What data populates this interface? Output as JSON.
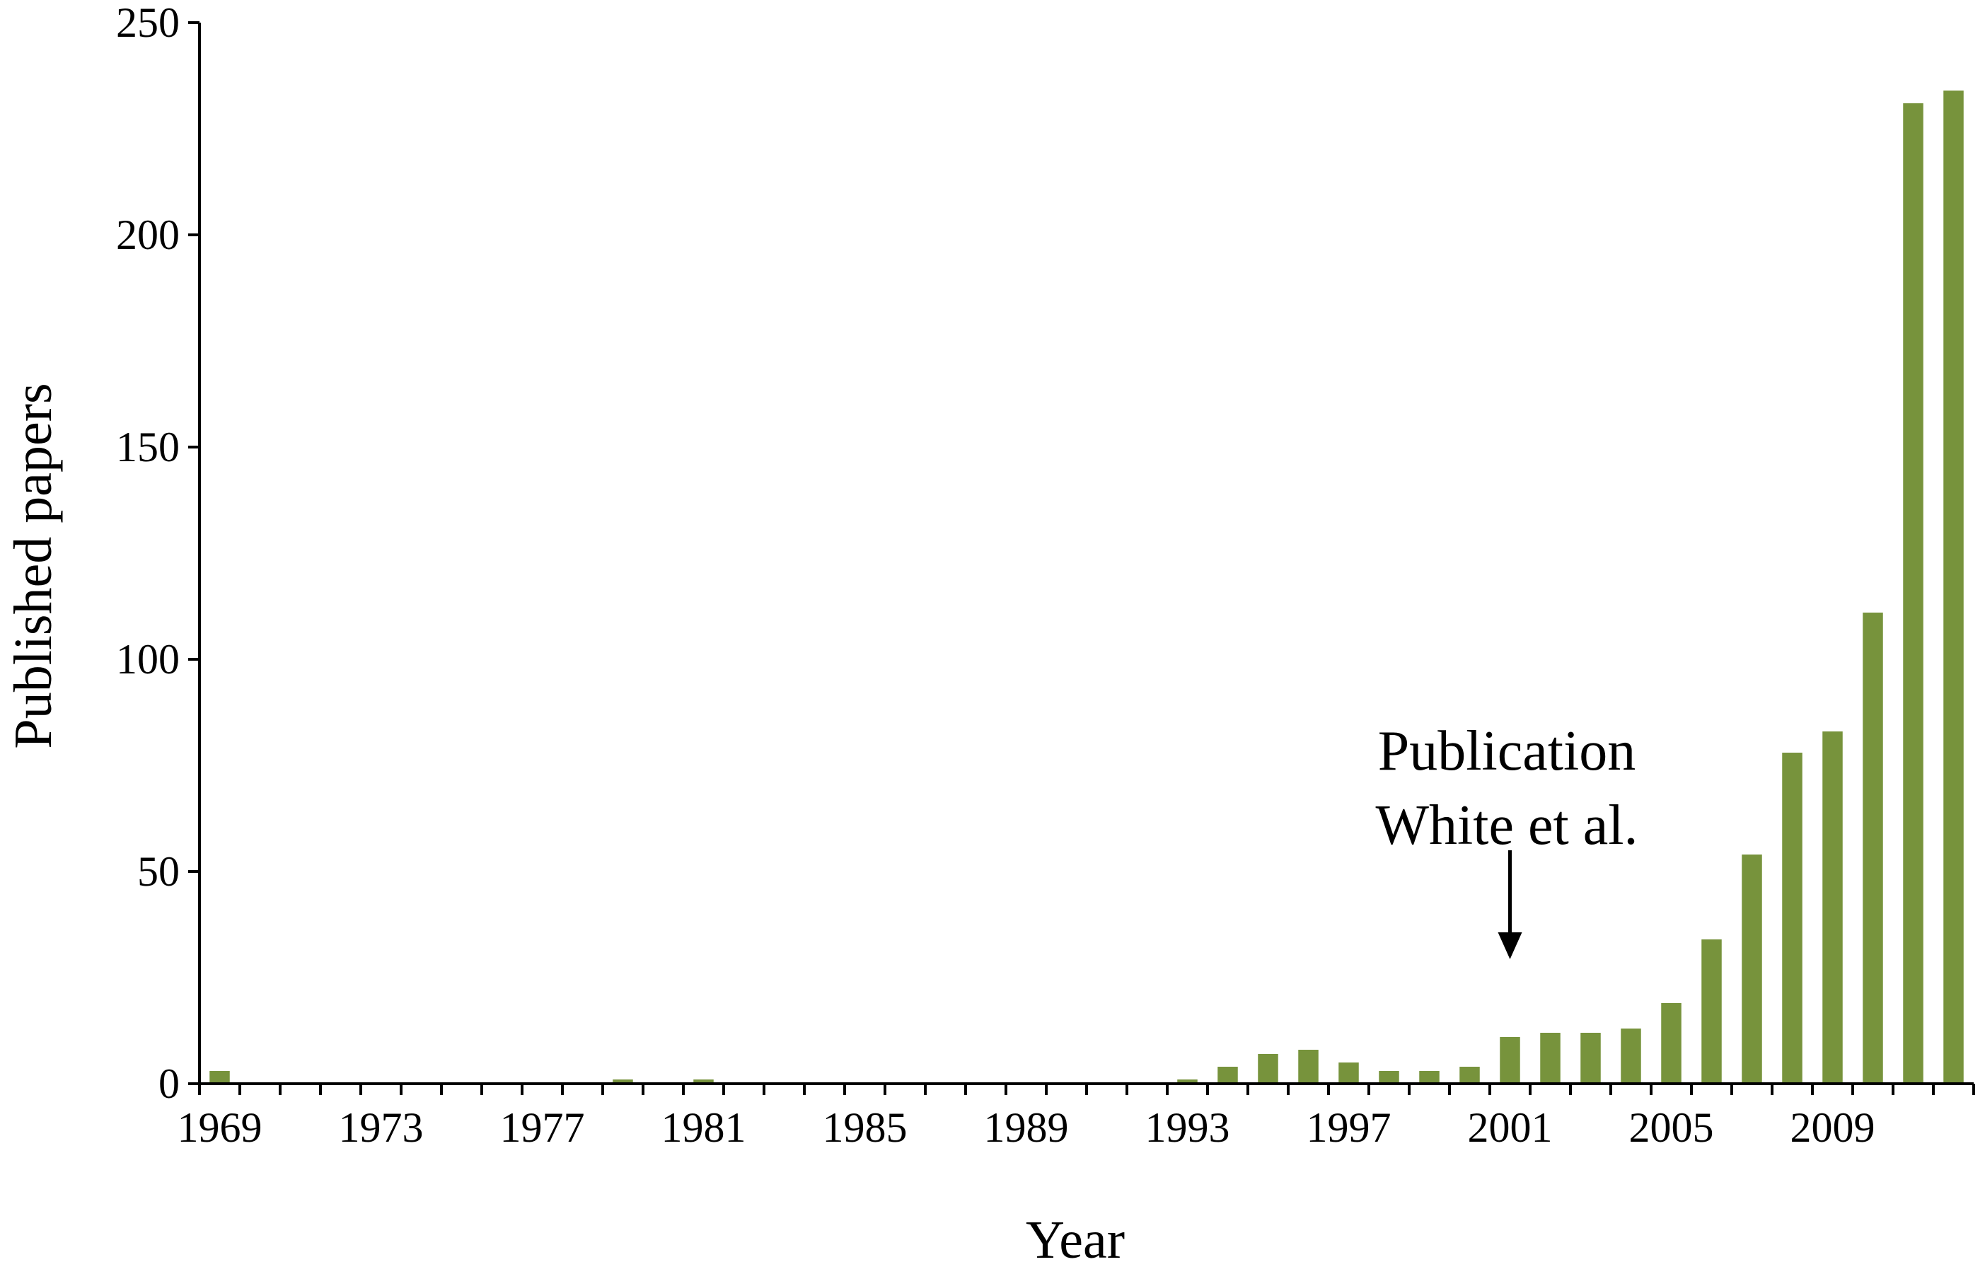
{
  "chart_data": {
    "type": "bar",
    "title": "",
    "xlabel": "Year",
    "ylabel": "Published papers",
    "ylim": [
      0,
      250
    ],
    "yticks": [
      0,
      50,
      100,
      150,
      200,
      250
    ],
    "xtick_labels": [
      "1969",
      "1973",
      "1977",
      "1981",
      "1985",
      "1989",
      "1993",
      "1997",
      "2001",
      "2005",
      "2009"
    ],
    "categories": [
      1969,
      1970,
      1971,
      1972,
      1973,
      1974,
      1975,
      1976,
      1977,
      1978,
      1979,
      1980,
      1981,
      1982,
      1983,
      1984,
      1985,
      1986,
      1987,
      1988,
      1989,
      1990,
      1991,
      1992,
      1993,
      1994,
      1995,
      1996,
      1997,
      1998,
      1999,
      2000,
      2001,
      2002,
      2003,
      2004,
      2005,
      2006,
      2007,
      2008,
      2009,
      2010,
      2011,
      2012
    ],
    "values": [
      3,
      0,
      0,
      0,
      0,
      0,
      0,
      0,
      0,
      0,
      1,
      0,
      1,
      0,
      0,
      0,
      0,
      0,
      0,
      0,
      0,
      0,
      0,
      0,
      1,
      4,
      7,
      8,
      5,
      3,
      3,
      4,
      11,
      12,
      12,
      13,
      19,
      34,
      54,
      78,
      83,
      111,
      231,
      234
    ],
    "bar_color": "#77933c",
    "grid": false,
    "annotation": {
      "lines": [
        "Publication",
        "White et al."
      ],
      "year": 2001
    }
  }
}
